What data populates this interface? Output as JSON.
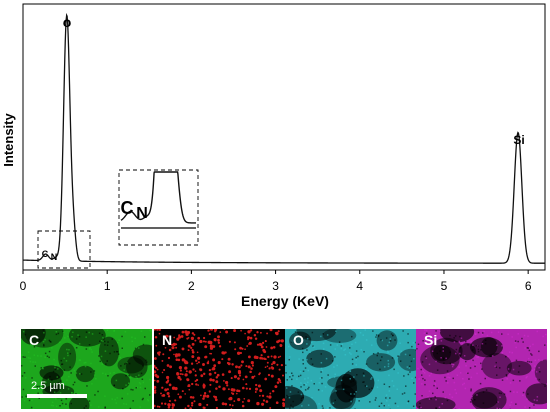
{
  "chart_data": {
    "type": "line",
    "xlabel": "Energy (KeV)",
    "ylabel": "Intensity",
    "xlim": [
      0,
      6.2
    ],
    "ylim": [
      0,
      1.0
    ],
    "xticks": [
      "0",
      "1",
      "2",
      "3",
      "4",
      "5",
      "6"
    ],
    "grid": false,
    "peaks": [
      {
        "label": "C",
        "x": 0.27,
        "y": 0.025
      },
      {
        "label": "N",
        "x": 0.39,
        "y": 0.012
      },
      {
        "label": "O",
        "x": 0.52,
        "y": 0.93
      },
      {
        "label": "",
        "x": 0.6,
        "y": 0.1
      },
      {
        "label": "Si",
        "x": 5.88,
        "y": 0.495
      }
    ],
    "annotations": {
      "o_label": "o",
      "si_label": "Si",
      "c_label": "C",
      "n_label": "N",
      "inset_c_label": "C",
      "inset_n_label": "N"
    }
  },
  "maps": [
    {
      "element": "C",
      "color": "#22c422"
    },
    {
      "element": "N",
      "color": "#d21d1d"
    },
    {
      "element": "O",
      "color": "#35c9d1"
    },
    {
      "element": "Si",
      "color": "#d12ccf"
    }
  ],
  "scalebar": "2.5 µm"
}
